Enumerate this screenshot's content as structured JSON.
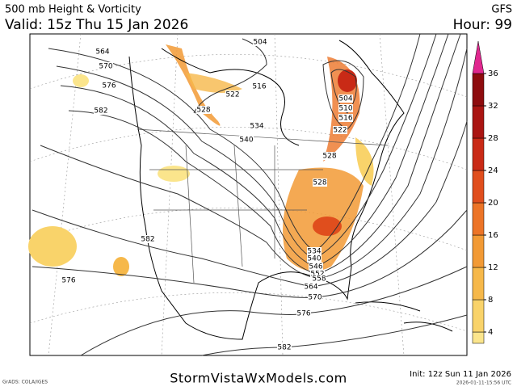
{
  "header": {
    "title": "500 mb Height & Vorticity",
    "model": "GFS",
    "valid": "Valid: 15z Thu 15 Jan 2026",
    "hour": "Hour: 99"
  },
  "contour_labels": [
    564,
    570,
    576,
    582,
    504,
    516,
    522,
    528,
    534,
    540,
    528,
    528,
    504,
    510,
    516,
    522,
    582,
    576,
    534,
    540,
    546,
    552,
    558,
    564,
    570,
    576,
    582
  ],
  "colorbar": {
    "ticks": [
      4,
      8,
      12,
      16,
      20,
      24,
      28,
      32,
      36
    ],
    "colors": [
      "#fbe58c",
      "#f9d36a",
      "#f6b84a",
      "#f29a35",
      "#ec7427",
      "#e04e1d",
      "#c92a16",
      "#aa1512",
      "#8e0c0e",
      "#e0288f"
    ]
  },
  "footer": {
    "site": "StormVistaWxModels.com",
    "init": "Init: 12z Sun 11 Jan 2026",
    "stamp": "2026-01-11-15:56 UTC",
    "credit": "GrADS: COLA/IGES"
  }
}
